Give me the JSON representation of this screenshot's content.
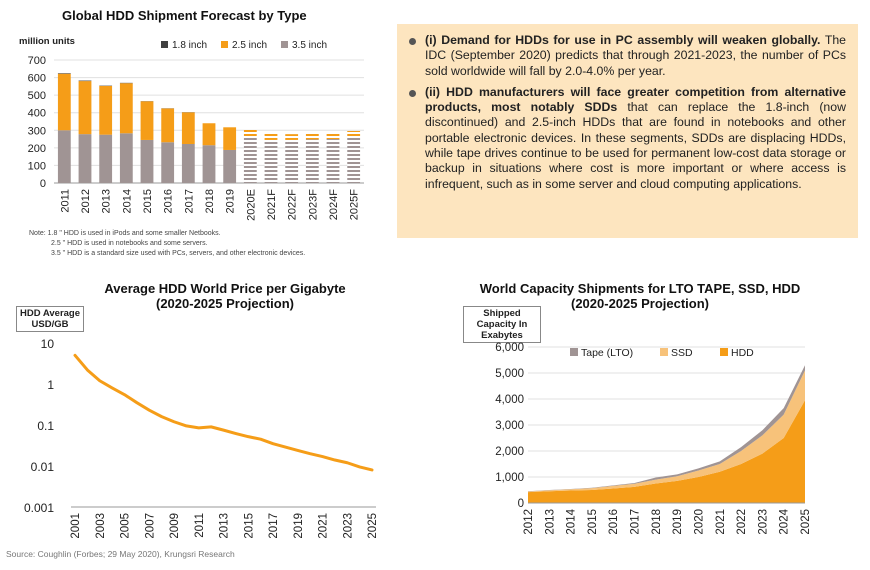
{
  "chart_data": [
    {
      "type": "bar",
      "stacked": true,
      "title": "Global HDD Shipment Forecast by Type",
      "ylabel": "million units",
      "ylim": [
        0,
        700
      ],
      "yticks": [
        0,
        100,
        200,
        300,
        400,
        500,
        600,
        700
      ],
      "legend_position": "top",
      "categories": [
        "2011",
        "2012",
        "2013",
        "2014",
        "2015",
        "2016",
        "2017",
        "2018",
        "2019",
        "2020E",
        "2021F",
        "2022F",
        "2023F",
        "2024F",
        "2025F"
      ],
      "forecast_from_index": 9,
      "series": [
        {
          "name": "1.8 inch",
          "color": "#404040",
          "values": [
            3,
            3,
            2,
            2,
            1,
            1,
            1,
            0,
            0,
            0,
            0,
            0,
            0,
            0,
            0
          ]
        },
        {
          "name": "2.5 inch",
          "color": "#f59d18",
          "values": [
            322,
            302,
            277,
            285,
            220,
            192,
            180,
            125,
            129,
            40,
            35,
            33,
            32,
            32,
            34
          ]
        },
        {
          "name": "3.5 inch",
          "color": "#a09494",
          "values": [
            300,
            278,
            275,
            283,
            245,
            232,
            222,
            215,
            188,
            262,
            245,
            245,
            248,
            250,
            262
          ]
        }
      ],
      "notes": [
        "Note: 1.8 \" HDD is used in iPods and some smaller Netbooks.",
        "2.5 \" HDD is used in notebooks and some servers.",
        "3.5 \" HDD is a standard size used with PCs, servers, and other electronic devices."
      ]
    },
    {
      "type": "line",
      "title": "Average HDD World Price per Gigabyte",
      "subtitle": "(2020-2025 Projection)",
      "ylabel": "HDD Average USD/GB",
      "yscale": "log",
      "ylim": [
        0.001,
        10
      ],
      "yticks": [
        "10",
        "1",
        "0.1",
        "0.01",
        "0.001"
      ],
      "xticks": [
        "2001",
        "2003",
        "2005",
        "2007",
        "2009",
        "2011",
        "2013",
        "2015",
        "2017",
        "2019",
        "2021",
        "2023",
        "2025"
      ],
      "series": [
        {
          "color": "#f59d18",
          "x": [
            2001,
            2002,
            2003,
            2004,
            2005,
            2006,
            2007,
            2008,
            2009,
            2010,
            2011,
            2012,
            2013,
            2014,
            2015,
            2016,
            2017,
            2018,
            2019,
            2020,
            2021,
            2022,
            2023,
            2024,
            2025
          ],
          "y": [
            5,
            2.2,
            1.2,
            0.8,
            0.55,
            0.35,
            0.23,
            0.16,
            0.12,
            0.095,
            0.085,
            0.09,
            0.075,
            0.062,
            0.052,
            0.045,
            0.035,
            0.029,
            0.024,
            0.02,
            0.017,
            0.014,
            0.012,
            0.0095,
            0.008
          ]
        }
      ]
    },
    {
      "type": "area",
      "stacked": true,
      "title": "World Capacity Shipments for LTO TAPE, SSD,  HDD",
      "subtitle": "(2020-2025 Projection)",
      "ylabel": "Shipped Capacity In Exabytes",
      "ylim": [
        0,
        6000
      ],
      "yticks": [
        "0",
        "1,000",
        "2,000",
        "3,000",
        "4,000",
        "5,000",
        "6,000"
      ],
      "legend_position": "top",
      "x": [
        "2012",
        "2013",
        "2014",
        "2015",
        "2016",
        "2017",
        "2018",
        "2019",
        "2020",
        "2021",
        "2022",
        "2023",
        "2024",
        "2025"
      ],
      "series": [
        {
          "name": "HDD",
          "color": "#f59d18",
          "values": [
            420,
            450,
            480,
            500,
            560,
            620,
            750,
            850,
            1000,
            1200,
            1500,
            1900,
            2500,
            3950
          ]
        },
        {
          "name": "SSD",
          "color": "#f7c27a",
          "values": [
            20,
            40,
            50,
            70,
            100,
            120,
            150,
            180,
            250,
            300,
            500,
            700,
            900,
            1150
          ]
        },
        {
          "name": "Tape (LTO)",
          "color": "#a09494",
          "values": [
            10,
            10,
            10,
            15,
            20,
            30,
            80,
            70,
            80,
            100,
            150,
            200,
            250,
            200
          ]
        }
      ]
    }
  ],
  "info": {
    "b1_bold": "(i) Demand for HDDs for use in PC assembly will weaken globally.",
    "b1_text": " The IDC (September 2020) predicts that through 2021-2023, the number of PCs sold worldwide will fall by 2.0-4.0% per year.",
    "b2_bold": "(ii) HDD manufacturers will face greater competition from alternative products, most notably SDDs",
    "b2_text": " that can replace the 1.8-inch (now discontinued) and 2.5-inch HDDs that are found in notebooks and other portable electronic devices. In these segments, SDDs are displacing HDDs, while tape drives continue to be used for permanent low-cost data storage or backup in situations where cost is more important or where access is infrequent, such as in some server and cloud computing applications."
  },
  "source": "Source: Coughlin (Forbes; 29 May 2020), Krungsri Research"
}
